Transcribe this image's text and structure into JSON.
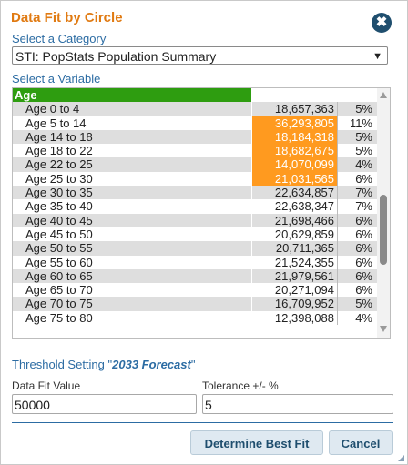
{
  "dialog": {
    "title": "Data Fit by Circle",
    "close_icon": "✖"
  },
  "category": {
    "label": "Select a Category",
    "selected": "STI: PopStats Population Summary"
  },
  "variable": {
    "label": "Select a Variable",
    "group": "Age",
    "rows": [
      {
        "label": "Age 0 to 4",
        "value": "18,657,363",
        "pct": "5%",
        "highlight": false
      },
      {
        "label": "Age 5 to 14",
        "value": "36,293,805",
        "pct": "11%",
        "highlight": true
      },
      {
        "label": "Age 14 to 18",
        "value": "18,184,318",
        "pct": "5%",
        "highlight": true
      },
      {
        "label": "Age 18 to 22",
        "value": "18,682,675",
        "pct": "5%",
        "highlight": true
      },
      {
        "label": "Age 22 to 25",
        "value": "14,070,099",
        "pct": "4%",
        "highlight": true
      },
      {
        "label": "Age 25 to 30",
        "value": "21,031,565",
        "pct": "6%",
        "highlight": true
      },
      {
        "label": "Age 30 to 35",
        "value": "22,634,857",
        "pct": "7%",
        "highlight": false
      },
      {
        "label": "Age 35 to 40",
        "value": "22,638,347",
        "pct": "7%",
        "highlight": false
      },
      {
        "label": "Age 40 to 45",
        "value": "21,698,466",
        "pct": "6%",
        "highlight": false
      },
      {
        "label": "Age 45 to 50",
        "value": "20,629,859",
        "pct": "6%",
        "highlight": false
      },
      {
        "label": "Age 50 to 55",
        "value": "20,711,365",
        "pct": "6%",
        "highlight": false
      },
      {
        "label": "Age 55 to 60",
        "value": "21,524,355",
        "pct": "6%",
        "highlight": false
      },
      {
        "label": "Age 60 to 65",
        "value": "21,979,561",
        "pct": "6%",
        "highlight": false
      },
      {
        "label": "Age 65 to 70",
        "value": "20,271,094",
        "pct": "6%",
        "highlight": false
      },
      {
        "label": "Age 70 to 75",
        "value": "16,709,952",
        "pct": "5%",
        "highlight": false
      },
      {
        "label": "Age 75 to 80",
        "value": "12,398,088",
        "pct": "4%",
        "highlight": false
      }
    ]
  },
  "threshold": {
    "prefix": "Threshold Setting \"",
    "name": "2033 Forecast",
    "suffix": "\""
  },
  "data_fit": {
    "label": "Data Fit Value",
    "value": "50000"
  },
  "tolerance": {
    "label": "Tolerance +/- %",
    "value": "5"
  },
  "buttons": {
    "determine": "Determine Best Fit",
    "cancel": "Cancel"
  },
  "colors": {
    "title": "#e07a12",
    "accent": "#2c6ca3",
    "group_header": "#2e9d10",
    "highlight": "#ff9a1f"
  }
}
